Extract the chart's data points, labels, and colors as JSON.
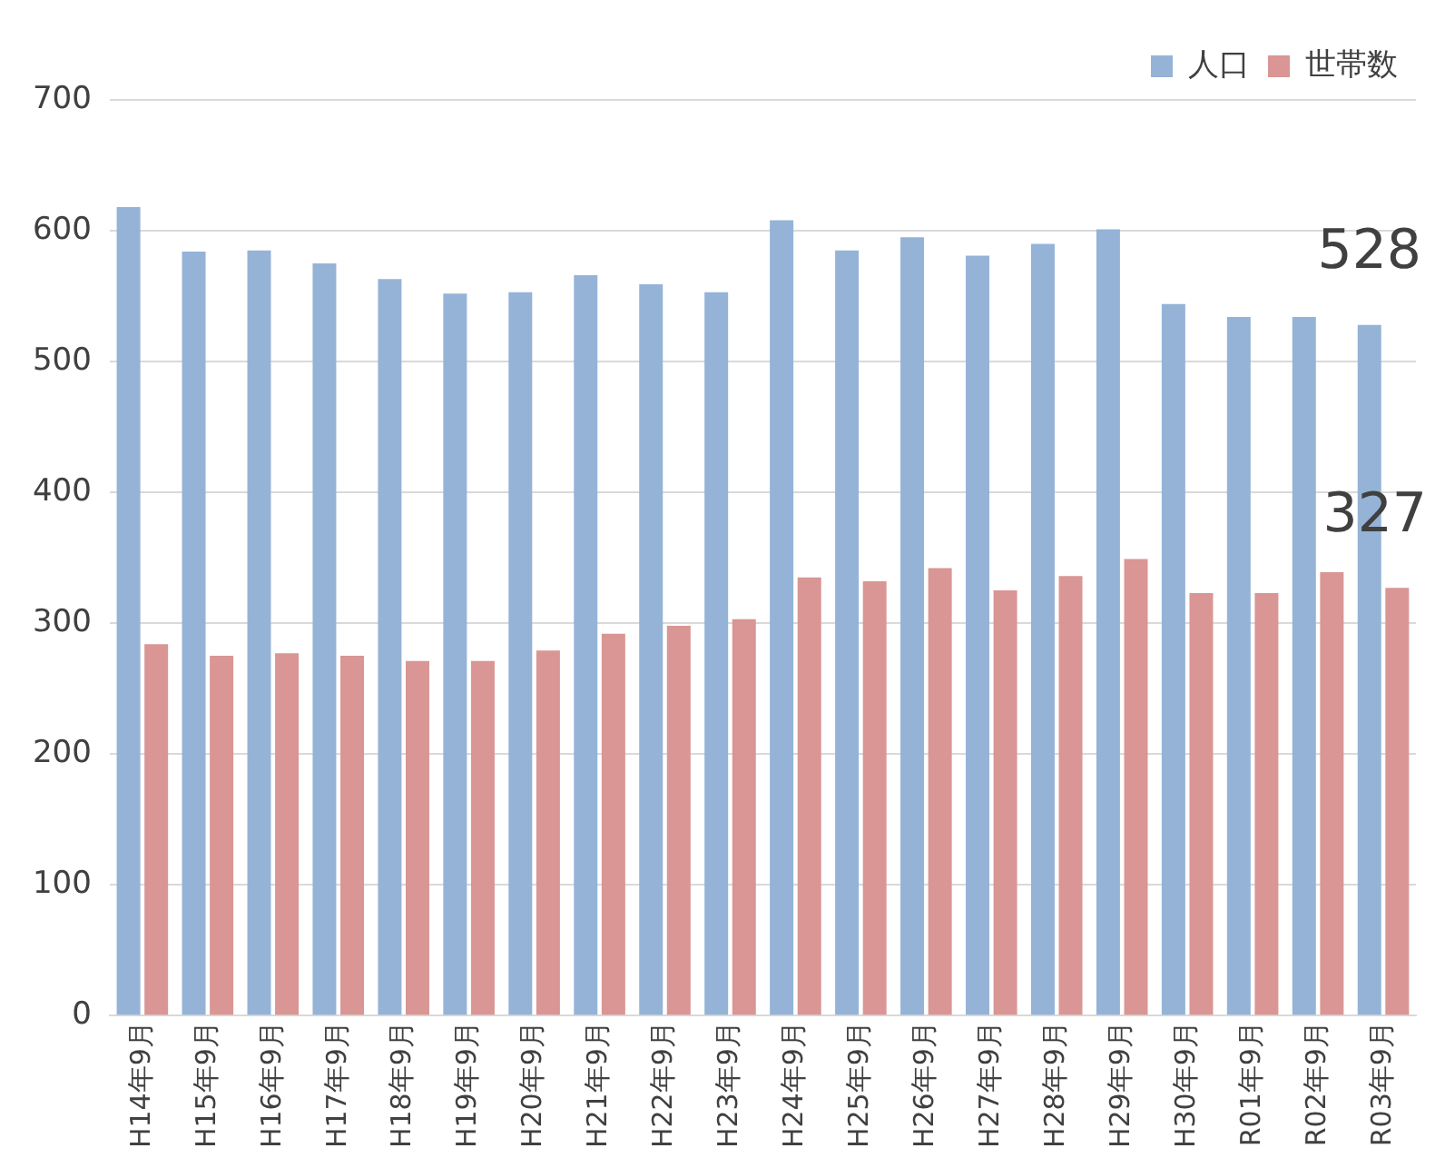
{
  "chart_data": {
    "type": "bar",
    "categories": [
      "H14年9月",
      "H15年9月",
      "H16年9月",
      "H17年9月",
      "H18年9月",
      "H19年9月",
      "H20年9月",
      "H21年9月",
      "H22年9月",
      "H23年9月",
      "H24年9月",
      "H25年9月",
      "H26年9月",
      "H27年9月",
      "H28年9月",
      "H29年9月",
      "H30年9月",
      "R01年9月",
      "R02年9月",
      "R03年9月"
    ],
    "series": [
      {
        "name": "人口",
        "color": "#95b3d7",
        "values": [
          618,
          584,
          585,
          575,
          563,
          552,
          553,
          566,
          559,
          553,
          608,
          585,
          595,
          581,
          590,
          601,
          544,
          534,
          534,
          528
        ],
        "value_labels": [
          null,
          null,
          null,
          null,
          null,
          null,
          null,
          null,
          null,
          null,
          null,
          null,
          null,
          null,
          null,
          null,
          null,
          null,
          null,
          "528"
        ]
      },
      {
        "name": "世帯数",
        "color": "#d99694",
        "values": [
          284,
          275,
          277,
          275,
          271,
          271,
          279,
          292,
          298,
          303,
          335,
          332,
          342,
          325,
          336,
          349,
          323,
          323,
          339,
          327
        ],
        "value_labels": [
          null,
          null,
          null,
          null,
          null,
          null,
          null,
          null,
          null,
          null,
          null,
          null,
          null,
          null,
          null,
          null,
          null,
          null,
          null,
          "327"
        ]
      }
    ],
    "ylim": [
      0,
      700
    ],
    "yticks": [
      0,
      100,
      200,
      300,
      400,
      500,
      600,
      700
    ],
    "grid": "y",
    "legend": "top right"
  }
}
